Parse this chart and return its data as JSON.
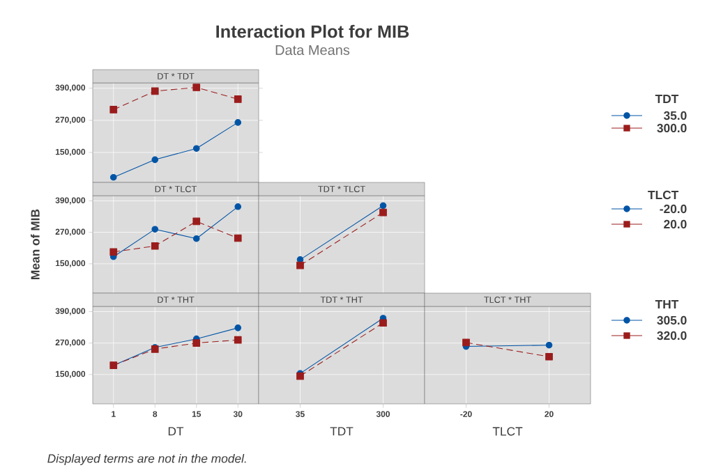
{
  "chart_data": [
    {
      "type": "line",
      "title": "DT * TDT",
      "annotations": [
        "Interaction Plot for MIB",
        "Data Means",
        "Displayed terms are not in the model."
      ],
      "categories": [
        "1",
        "8",
        "15",
        "30"
      ],
      "ylim": [
        38000,
        410000
      ],
      "yticks": [
        {
          "value": 150000,
          "label": "150,000"
        },
        {
          "value": 270000,
          "label": "270,000"
        },
        {
          "value": 390000,
          "label": "390,000"
        }
      ],
      "grid": true,
      "tick_labels": "y",
      "legend": "right",
      "legend_title": "TDT",
      "series": [
        {
          "name": "35.0",
          "color": "#0054a6",
          "marker": "circle",
          "line_style": "solid",
          "values": [
            57000,
            123000,
            165000,
            262000
          ]
        },
        {
          "name": "300.0",
          "color": "#9b1c1c",
          "marker": "square",
          "line_style": "dashed",
          "values": [
            310000,
            379000,
            393000,
            349000
          ]
        }
      ]
    },
    {
      "type": "line",
      "title": "DT * TLCT",
      "ylabel": "Mean of MIB",
      "categories": [
        "1",
        "8",
        "15",
        "30"
      ],
      "ylim": [
        38000,
        410000
      ],
      "yticks": [
        {
          "value": 150000,
          "label": "150,000"
        },
        {
          "value": 270000,
          "label": "270,000"
        },
        {
          "value": 390000,
          "label": "390,000"
        }
      ],
      "grid": true,
      "tick_labels": "y",
      "series": [
        {
          "color": "#0054a6",
          "marker": "circle",
          "line_style": "solid",
          "values": [
            177000,
            282000,
            246000,
            368000
          ]
        },
        {
          "color": "#9b1c1c",
          "marker": "square",
          "line_style": "dashed",
          "values": [
            195000,
            218000,
            312000,
            248000
          ]
        }
      ]
    },
    {
      "type": "line",
      "title": "TDT * TLCT",
      "categories": [
        "35",
        "300"
      ],
      "ylim": [
        38000,
        410000
      ],
      "grid": true,
      "tick_labels": false,
      "legend": "right",
      "legend_title": "TLCT",
      "series": [
        {
          "name": "-20.0",
          "color": "#0054a6",
          "marker": "circle",
          "line_style": "solid",
          "values": [
            166000,
            372000
          ]
        },
        {
          "name": "20.0",
          "color": "#9b1c1c",
          "marker": "square",
          "line_style": "dashed",
          "values": [
            144000,
            346000
          ]
        }
      ]
    },
    {
      "type": "line",
      "title": "DT * THT",
      "xlabel": "DT",
      "categories": [
        "1",
        "8",
        "15",
        "30"
      ],
      "ylim": [
        38000,
        410000
      ],
      "yticks": [
        {
          "value": 150000,
          "label": "150,000"
        },
        {
          "value": 270000,
          "label": "270,000"
        },
        {
          "value": 390000,
          "label": "390,000"
        }
      ],
      "grid": true,
      "series": [
        {
          "color": "#0054a6",
          "marker": "circle",
          "line_style": "solid",
          "values": [
            185000,
            253000,
            286000,
            328000
          ]
        },
        {
          "color": "#9b1c1c",
          "marker": "square",
          "line_style": "dashed",
          "values": [
            185000,
            247000,
            270000,
            282000
          ]
        }
      ]
    },
    {
      "type": "line",
      "title": "TDT * THT",
      "xlabel": "TDT",
      "categories": [
        "35",
        "300"
      ],
      "ylim": [
        38000,
        410000
      ],
      "grid": true,
      "tick_labels": "x",
      "series": [
        {
          "color": "#0054a6",
          "marker": "circle",
          "line_style": "solid",
          "values": [
            154000,
            365000
          ]
        },
        {
          "color": "#9b1c1c",
          "marker": "square",
          "line_style": "dashed",
          "values": [
            144000,
            347000
          ]
        }
      ]
    },
    {
      "type": "line",
      "title": "TLCT * THT",
      "xlabel": "TLCT",
      "categories": [
        "-20",
        "20"
      ],
      "ylim": [
        38000,
        410000
      ],
      "grid": true,
      "tick_labels": "x",
      "legend": "right",
      "legend_title": "THT",
      "series": [
        {
          "name": "305.0",
          "color": "#0054a6",
          "marker": "circle",
          "line_style": "solid",
          "values": [
            257000,
            262000
          ]
        },
        {
          "name": "320.0",
          "color": "#9b1c1c",
          "marker": "square",
          "line_style": "dashed",
          "values": [
            272000,
            218000
          ]
        }
      ]
    }
  ]
}
